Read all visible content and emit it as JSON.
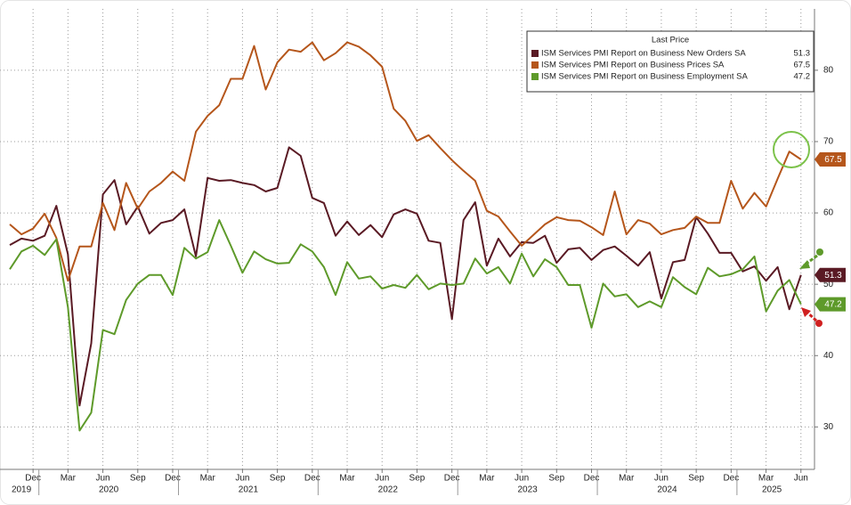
{
  "chart_data": {
    "type": "line",
    "legend_title": "Last Price",
    "categories": [
      "2019-10",
      "2019-11",
      "2019-12",
      "2020-01",
      "2020-02",
      "2020-03",
      "2020-04",
      "2020-05",
      "2020-06",
      "2020-07",
      "2020-08",
      "2020-09",
      "2020-10",
      "2020-11",
      "2020-12",
      "2021-01",
      "2021-02",
      "2021-03",
      "2021-04",
      "2021-05",
      "2021-06",
      "2021-07",
      "2021-08",
      "2021-09",
      "2021-10",
      "2021-11",
      "2021-12",
      "2022-01",
      "2022-02",
      "2022-03",
      "2022-04",
      "2022-05",
      "2022-06",
      "2022-07",
      "2022-08",
      "2022-09",
      "2022-10",
      "2022-11",
      "2022-12",
      "2023-01",
      "2023-02",
      "2023-03",
      "2023-04",
      "2023-05",
      "2023-06",
      "2023-07",
      "2023-08",
      "2023-09",
      "2023-10",
      "2023-11",
      "2023-12",
      "2024-01",
      "2024-02",
      "2024-03",
      "2024-04",
      "2024-05",
      "2024-06",
      "2024-07",
      "2024-08",
      "2024-09",
      "2024-10",
      "2024-11",
      "2024-12",
      "2025-01",
      "2025-02",
      "2025-03",
      "2025-04",
      "2025-05",
      "2025-06"
    ],
    "series": [
      {
        "name": "ISM Services PMI Report on Business New Orders SA",
        "color": "#5a1a24",
        "values": [
          55.5,
          56.4,
          56.1,
          56.8,
          61.0,
          54.2,
          33.0,
          41.7,
          62.6,
          64.6,
          58.4,
          60.9,
          57.1,
          58.6,
          59.0,
          60.5,
          53.9,
          64.9,
          64.5,
          64.6,
          64.2,
          63.9,
          63.0,
          63.5,
          69.2,
          68.0,
          62.1,
          61.4,
          56.8,
          58.8,
          56.9,
          58.3,
          56.6,
          59.8,
          60.5,
          59.9,
          56.1,
          55.8,
          45.1,
          59.0,
          61.5,
          52.6,
          56.4,
          53.9,
          55.9,
          55.8,
          56.8,
          53.0,
          54.9,
          55.1,
          53.4,
          54.8,
          55.3,
          54.0,
          52.6,
          54.5,
          48.0,
          53.1,
          53.4,
          59.4,
          57.1,
          54.4,
          54.4,
          51.8,
          52.5,
          50.5,
          52.4,
          46.5,
          51.3
        ]
      },
      {
        "name": "ISM Services PMI Report on Business Prices SA",
        "color": "#b5561b",
        "values": [
          58.4,
          57.0,
          57.8,
          59.9,
          56.5,
          50.5,
          55.3,
          55.3,
          61.4,
          57.6,
          64.2,
          60.6,
          63.0,
          64.2,
          65.8,
          64.5,
          71.4,
          73.6,
          75.1,
          78.8,
          78.8,
          83.4,
          77.3,
          81.1,
          82.9,
          82.6,
          83.9,
          81.4,
          82.4,
          83.9,
          83.3,
          82.1,
          80.5,
          74.6,
          72.9,
          70.1,
          70.9,
          69.1,
          67.4,
          65.9,
          64.5,
          60.3,
          59.5,
          57.4,
          55.4,
          56.9,
          58.4,
          59.4,
          59.0,
          58.9,
          58.0,
          56.9,
          63.0,
          57.0,
          59.0,
          58.5,
          57.0,
          57.6,
          57.9,
          59.5,
          58.6,
          58.6,
          64.5,
          60.6,
          62.8,
          60.9,
          64.8,
          68.6,
          67.5
        ]
      },
      {
        "name": "ISM Services PMI Report on Business Employment SA",
        "color": "#5e9a2a",
        "values": [
          52.1,
          54.6,
          55.4,
          54.1,
          56.3,
          46.8,
          29.5,
          32.0,
          43.6,
          43.0,
          47.8,
          50.1,
          51.3,
          51.3,
          48.5,
          55.1,
          53.6,
          54.5,
          59.0,
          55.4,
          51.6,
          54.6,
          53.5,
          52.9,
          53.0,
          55.6,
          54.6,
          52.4,
          48.5,
          53.1,
          50.8,
          51.1,
          49.4,
          49.9,
          49.5,
          51.3,
          49.3,
          50.1,
          49.9,
          50.1,
          53.6,
          51.5,
          52.4,
          50.1,
          54.3,
          51.1,
          53.5,
          52.4,
          49.9,
          49.9,
          43.9,
          50.1,
          48.3,
          48.6,
          46.8,
          47.6,
          46.8,
          51.0,
          49.6,
          48.6,
          52.3,
          51.1,
          51.4,
          52.1,
          53.9,
          46.2,
          49.1,
          50.6,
          47.2
        ]
      }
    ],
    "ylim": [
      24.3,
      88.6
    ],
    "yticks": [
      30,
      40,
      50,
      60,
      70,
      80
    ],
    "xticks": [
      {
        "value": "2019-12",
        "label": "Dec"
      },
      {
        "value": "2020-03",
        "label": "Mar"
      },
      {
        "value": "2020-06",
        "label": "Jun"
      },
      {
        "value": "2020-09",
        "label": "Sep"
      },
      {
        "value": "2020-12",
        "label": "Dec"
      },
      {
        "value": "2021-03",
        "label": "Mar"
      },
      {
        "value": "2021-06",
        "label": "Jun"
      },
      {
        "value": "2021-09",
        "label": "Sep"
      },
      {
        "value": "2021-12",
        "label": "Dec"
      },
      {
        "value": "2022-03",
        "label": "Mar"
      },
      {
        "value": "2022-06",
        "label": "Jun"
      },
      {
        "value": "2022-09",
        "label": "Sep"
      },
      {
        "value": "2022-12",
        "label": "Dec"
      },
      {
        "value": "2023-03",
        "label": "Mar"
      },
      {
        "value": "2023-06",
        "label": "Jun"
      },
      {
        "value": "2023-09",
        "label": "Sep"
      },
      {
        "value": "2023-12",
        "label": "Dec"
      },
      {
        "value": "2024-03",
        "label": "Mar"
      },
      {
        "value": "2024-06",
        "label": "Jun"
      },
      {
        "value": "2024-09",
        "label": "Sep"
      },
      {
        "value": "2024-12",
        "label": "Dec"
      },
      {
        "value": "2025-03",
        "label": "Mar"
      },
      {
        "value": "2025-06",
        "label": "Jun"
      }
    ],
    "years": [
      "2019",
      "2020",
      "2021",
      "2022",
      "2023",
      "2024",
      "2025"
    ],
    "grid": true
  }
}
